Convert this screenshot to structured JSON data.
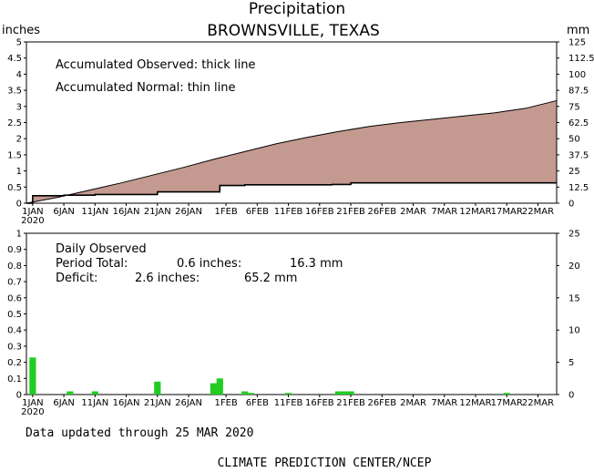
{
  "title": "Precipitation",
  "subtitle": "BROWNSVILLE, TEXAS",
  "footer_updated": "Data updated through 25 MAR 2020",
  "footer_credit": "CLIMATE PREDICTION CENTER/NCEP",
  "colors": {
    "deficit_fill": "#c49a90",
    "bars": "#22cc22",
    "line": "#000000"
  },
  "chart_data": [
    {
      "type": "area",
      "left_unit": "inches",
      "right_unit": "mm",
      "ylim": [
        0,
        5
      ],
      "y_ticks": [
        "0",
        "0.5",
        "1",
        "1.5",
        "2",
        "2.5",
        "3",
        "3.5",
        "4",
        "4.5",
        "5"
      ],
      "right_ticks": [
        "0",
        "12.5",
        "25",
        "37.5",
        "50",
        "62.5",
        "75",
        "87.5",
        "100",
        "112.5",
        "125"
      ],
      "x_ticks": [
        "1JAN",
        "6JAN",
        "11JAN",
        "16JAN",
        "21JAN",
        "26JAN",
        "1FEB",
        "6FEB",
        "11FEB",
        "16FEB",
        "21FEB",
        "26FEB",
        "2MAR",
        "7MAR",
        "12MAR",
        "17MAR",
        "22MAR"
      ],
      "x_tick_days": [
        1,
        6,
        11,
        16,
        21,
        26,
        32,
        37,
        42,
        47,
        52,
        57,
        62,
        67,
        72,
        77,
        82
      ],
      "year_label": "2020",
      "notes": [
        "Accumulated Observed: thick line",
        "Accumulated Normal: thin line"
      ],
      "series": [
        {
          "name": "Accumulated Normal",
          "x": [
            0,
            5,
            10,
            15,
            20,
            25,
            30,
            35,
            40,
            45,
            50,
            55,
            60,
            65,
            70,
            75,
            80,
            85
          ],
          "values": [
            0,
            0.18,
            0.4,
            0.62,
            0.86,
            1.1,
            1.36,
            1.6,
            1.84,
            2.04,
            2.22,
            2.38,
            2.5,
            2.6,
            2.7,
            2.8,
            2.94,
            3.18
          ]
        },
        {
          "name": "Accumulated Observed",
          "x": [
            0,
            1,
            1.01,
            6,
            6.01,
            11,
            11.01,
            21,
            21.01,
            31,
            31.01,
            35,
            35.01,
            49,
            49.01,
            52,
            52.01,
            85
          ],
          "values": [
            0,
            0,
            0.23,
            0.23,
            0.25,
            0.25,
            0.27,
            0.27,
            0.35,
            0.35,
            0.55,
            0.55,
            0.57,
            0.57,
            0.58,
            0.58,
            0.63,
            0.63
          ]
        }
      ]
    },
    {
      "type": "bar",
      "left_unit": "inches",
      "right_unit": "mm",
      "ylim": [
        0,
        1
      ],
      "y_ticks": [
        "0",
        "0.1",
        "0.2",
        "0.3",
        "0.4",
        "0.5",
        "0.6",
        "0.7",
        "0.8",
        "0.9",
        "1"
      ],
      "right_ticks": [
        "0",
        "5",
        "10",
        "15",
        "20",
        "25"
      ],
      "x_ticks": [
        "1JAN",
        "6JAN",
        "11JAN",
        "16JAN",
        "21JAN",
        "26JAN",
        "1FEB",
        "6FEB",
        "11FEB",
        "16FEB",
        "21FEB",
        "26FEB",
        "2MAR",
        "7MAR",
        "12MAR",
        "17MAR",
        "22MAR"
      ],
      "x_tick_days": [
        1,
        6,
        11,
        16,
        21,
        26,
        32,
        37,
        42,
        47,
        52,
        57,
        62,
        67,
        72,
        77,
        82
      ],
      "year_label": "2020",
      "notes": [
        "Daily Observed"
      ],
      "period_total_label": "Period Total:",
      "period_total_in": "0.6 inches:",
      "period_total_mm": "16.3 mm",
      "deficit_label": "Deficit:",
      "deficit_in": "2.6 inches:",
      "deficit_mm": "65.2 mm",
      "days": [
        1,
        7,
        11,
        21,
        30,
        31,
        35,
        36,
        42,
        50,
        51,
        52,
        77
      ],
      "values": [
        0.23,
        0.02,
        0.02,
        0.08,
        0.07,
        0.1,
        0.02,
        0.01,
        0.01,
        0.02,
        0.02,
        0.02,
        0.01
      ]
    }
  ]
}
